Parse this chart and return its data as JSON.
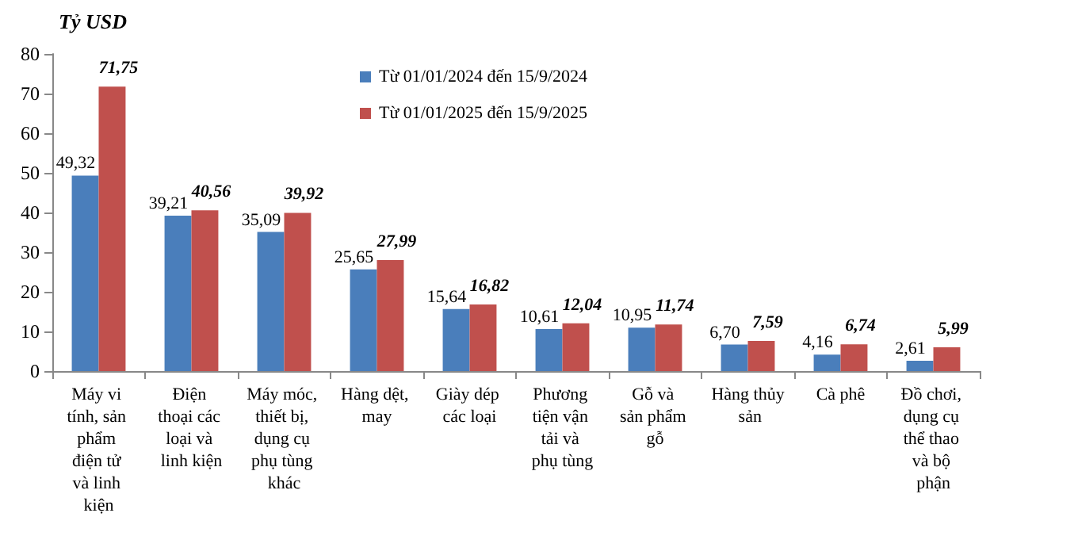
{
  "chart_data": {
    "type": "bar",
    "ylabel": "Tỷ USD",
    "categories": [
      "Máy vi tính, sản phẩm điện tử và linh kiện",
      "Điện thoại các loại và linh kiện",
      "Máy móc, thiết bị, dụng cụ phụ tùng khác",
      "Hàng dệt, may",
      "Giày dép các loại",
      "Phương tiện vận tải và phụ tùng",
      "Gỗ và sản phẩm gỗ",
      "Hàng thủy sản",
      "Cà phê",
      "Đồ chơi, dụng cụ thể thao và bộ phận"
    ],
    "series": [
      {
        "name": "Từ 01/01/2024 đến 15/9/2024",
        "color": "#4a7ebb",
        "values": [
          49.32,
          39.21,
          35.09,
          25.65,
          15.64,
          10.61,
          10.95,
          6.7,
          4.16,
          2.61
        ],
        "value_labels": [
          "49,32",
          "39,21",
          "35,09",
          "25,65",
          "15,64",
          "10,61",
          "10,95",
          "6,70",
          "4,16",
          "2,61"
        ]
      },
      {
        "name": "Từ 01/01/2025 đến 15/9/2025",
        "color": "#c0504d",
        "values": [
          71.75,
          40.56,
          39.92,
          27.99,
          16.82,
          12.04,
          11.74,
          7.59,
          6.74,
          5.99
        ],
        "value_labels": [
          "71,75",
          "40,56",
          "39,92",
          "27,99",
          "16,82",
          "12,04",
          "11,74",
          "7,59",
          "6,74",
          "5,99"
        ]
      }
    ],
    "ylim": [
      0,
      80
    ],
    "yticks": [
      0,
      10,
      20,
      30,
      40,
      50,
      60,
      70,
      80
    ],
    "grid": false,
    "legend": "top"
  }
}
